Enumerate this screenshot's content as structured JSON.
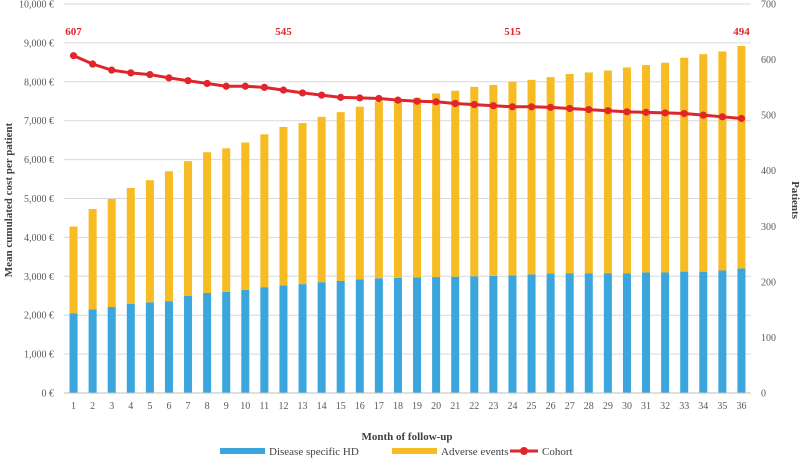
{
  "chart_data": {
    "type": "bar+line",
    "stacked": true,
    "xlabel": "Month of follow-up",
    "ylabel": "Mean cumulated cost per patient",
    "y2label": "Patients",
    "ylim": [
      0,
      10000
    ],
    "y_ticks": [
      "0 €",
      "1,000 €",
      "2,000 €",
      "3,000 €",
      "4,000 €",
      "5,000 €",
      "6,000 €",
      "7,000 €",
      "8,000 €",
      "9,000 €",
      "10,000 €"
    ],
    "y2lim": [
      0,
      700
    ],
    "y2_ticks": [
      "0",
      "100",
      "200",
      "300",
      "400",
      "500",
      "600",
      "700"
    ],
    "categories": [
      "1",
      "2",
      "3",
      "4",
      "5",
      "6",
      "7",
      "8",
      "9",
      "10",
      "11",
      "12",
      "13",
      "14",
      "15",
      "16",
      "17",
      "18",
      "19",
      "20",
      "21",
      "22",
      "23",
      "24",
      "25",
      "26",
      "27",
      "28",
      "29",
      "30",
      "31",
      "32",
      "33",
      "34",
      "35",
      "36"
    ],
    "series": [
      {
        "name": "Disease specific HD",
        "kind": "bar",
        "axis": "left",
        "color": "#3aa6dd",
        "values": [
          2050,
          2150,
          2210,
          2290,
          2330,
          2360,
          2500,
          2570,
          2600,
          2650,
          2720,
          2770,
          2800,
          2850,
          2880,
          2920,
          2950,
          2960,
          2970,
          2980,
          2990,
          3000,
          3010,
          3020,
          3050,
          3070,
          3080,
          3080,
          3080,
          3080,
          3100,
          3100,
          3120,
          3120,
          3150,
          3200
        ]
      },
      {
        "name": "Adverse events",
        "kind": "bar",
        "axis": "left",
        "color": "#f7bc23",
        "values": [
          2230,
          2580,
          2780,
          2980,
          3140,
          3340,
          3460,
          3620,
          3690,
          3790,
          3930,
          4070,
          4140,
          4250,
          4340,
          4440,
          4550,
          4580,
          4620,
          4720,
          4780,
          4870,
          4910,
          4980,
          5000,
          5050,
          5120,
          5160,
          5210,
          5290,
          5330,
          5390,
          5500,
          5590,
          5630,
          5720
        ]
      },
      {
        "name": "Cohort",
        "kind": "line",
        "axis": "right",
        "color": "#e0262b",
        "values": [
          607,
          592,
          581,
          576,
          573,
          567,
          562,
          557,
          552,
          552,
          550,
          545,
          540,
          536,
          532,
          531,
          530,
          527,
          525,
          524,
          521,
          519,
          517,
          515,
          515,
          514,
          512,
          510,
          508,
          506,
          505,
          504,
          503,
          500,
          497,
          494
        ]
      }
    ],
    "annotations": [
      {
        "category": "1",
        "text": "607"
      },
      {
        "category": "12",
        "text": "545"
      },
      {
        "category": "24",
        "text": "515"
      },
      {
        "category": "36",
        "text": "494"
      }
    ],
    "legend": "bottom"
  }
}
